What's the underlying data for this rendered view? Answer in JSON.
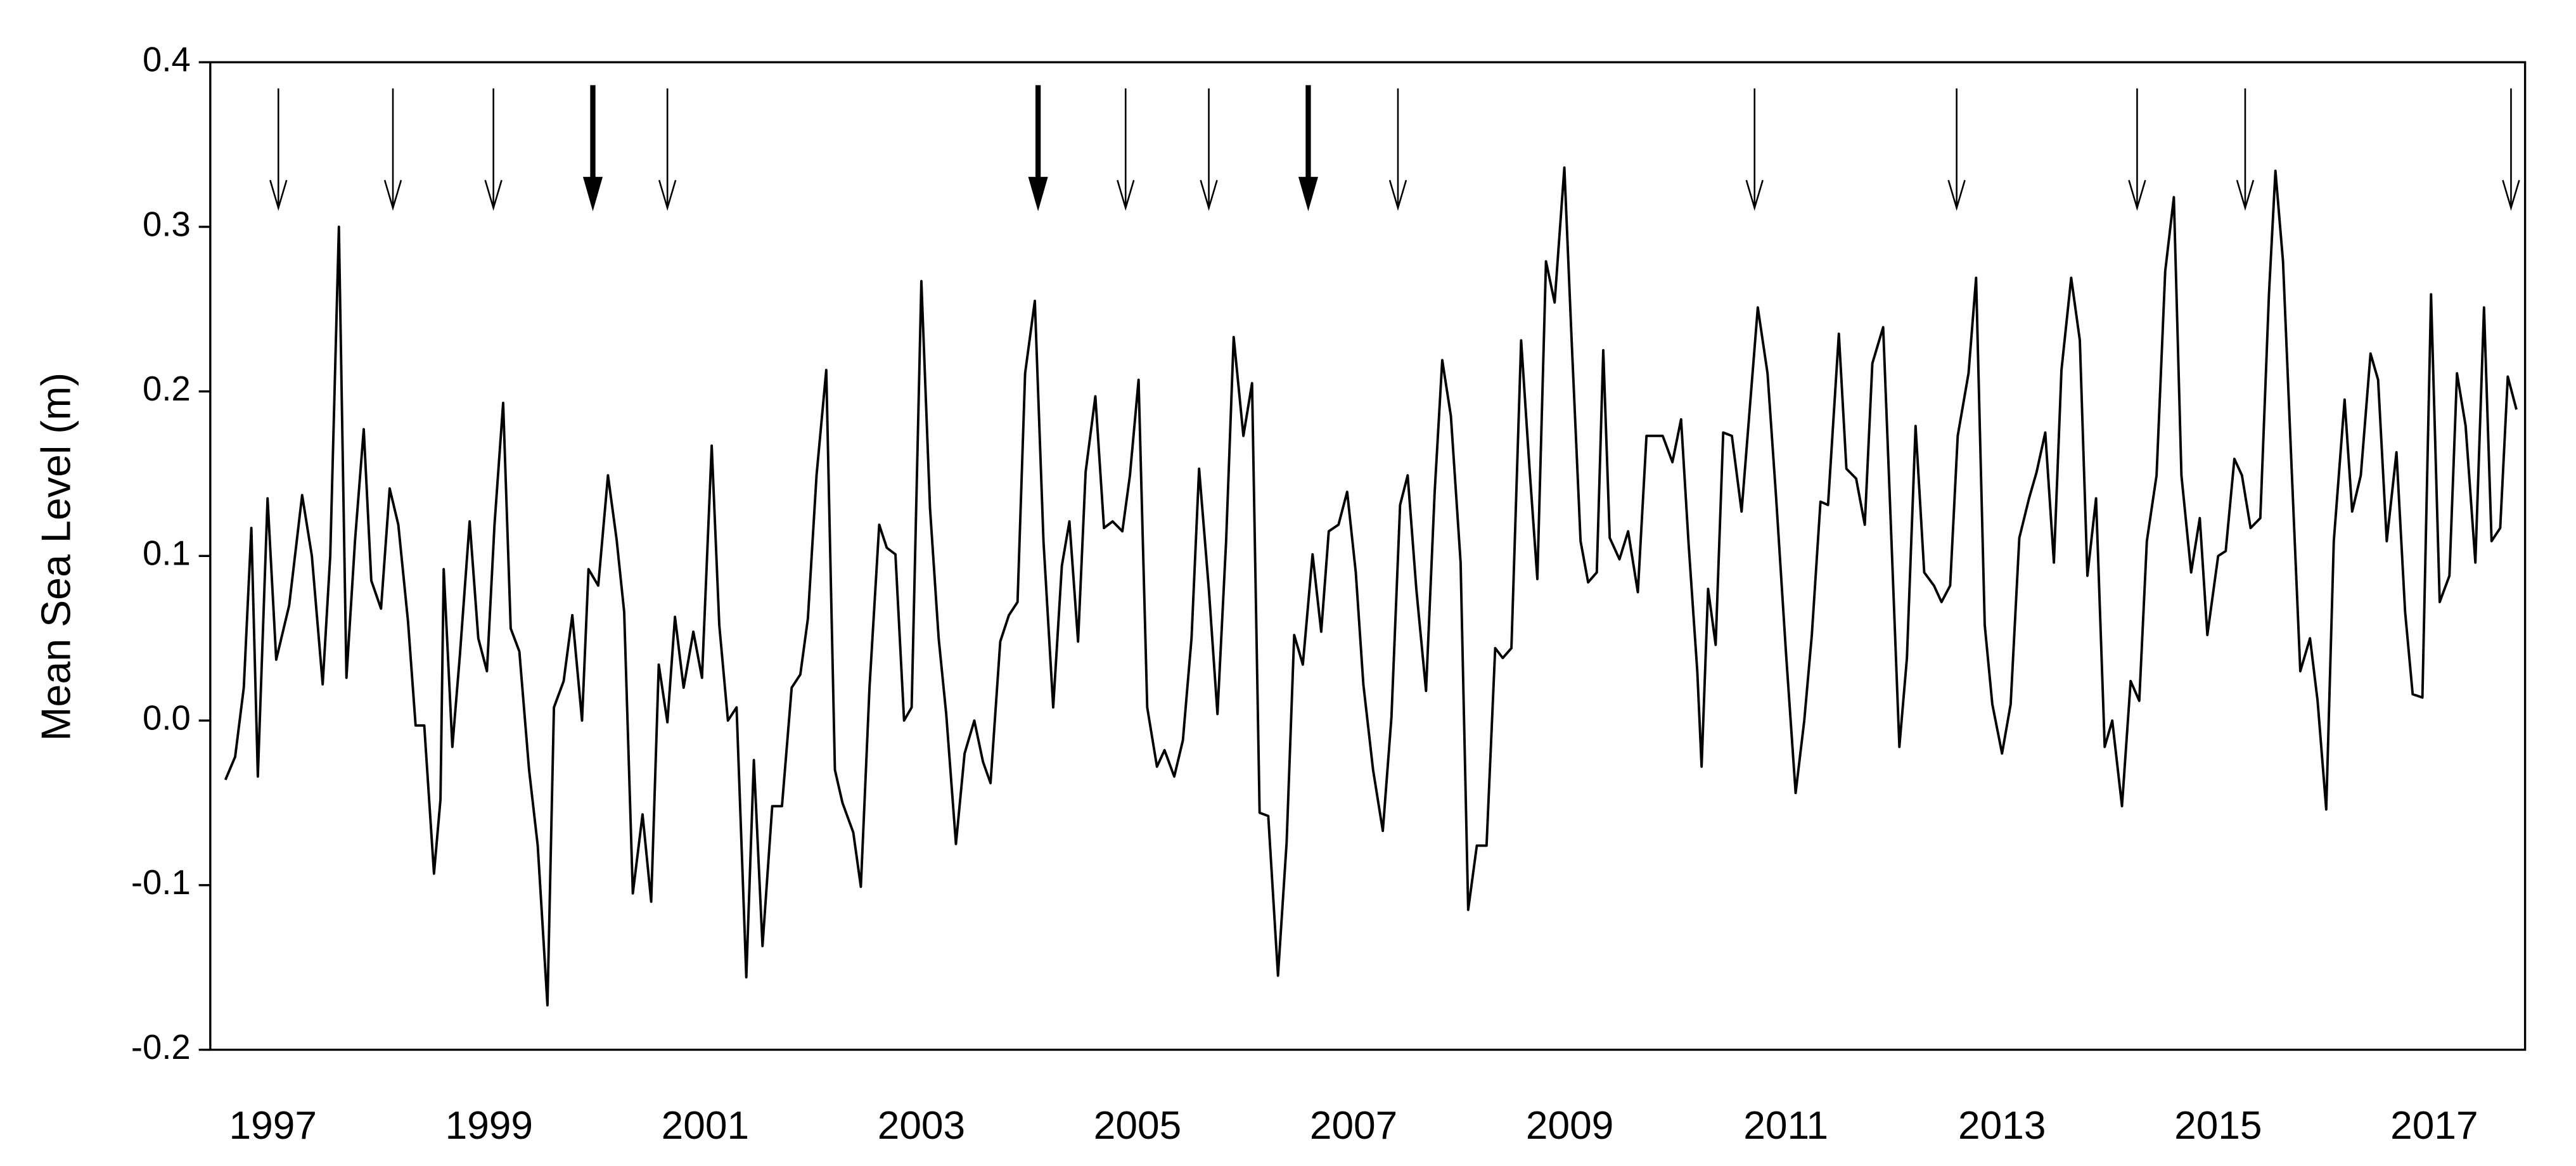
{
  "chart_data": {
    "type": "line",
    "y_label": "Mean Sea Level (m)",
    "color": "#000000",
    "xlim": [
      1996.42,
      2017.84
    ],
    "xticks": [
      1997,
      1999,
      2001,
      2003,
      2005,
      2007,
      2009,
      2011,
      2013,
      2015,
      2017
    ],
    "ylim": [
      -0.2,
      0.4
    ],
    "yticks": [
      -0.2,
      -0.1,
      {
        "value": 0,
        "label": "0.0"
      },
      0.1,
      0.2,
      0.3,
      0.4
    ],
    "event_arrows": [
      1997.05,
      1998.11,
      1999.04,
      2000.65,
      2004.89,
      2005.66,
      2007.41,
      2010.71,
      2012.58,
      2014.25,
      2015.25,
      2017.71
    ],
    "major_event_arrows": [
      1999.96,
      2004.08,
      2006.58
    ],
    "x": [
      1996.56,
      1996.65,
      1996.73,
      1996.8,
      1996.86,
      1996.95,
      1997.03,
      1997.15,
      1997.27,
      1997.36,
      1997.46,
      1997.53,
      1997.61,
      1997.68,
      1997.76,
      1997.84,
      1997.91,
      1998.0,
      1998.08,
      1998.16,
      1998.25,
      1998.32,
      1998.4,
      1998.49,
      1998.55,
      1998.58,
      1998.66,
      1998.73,
      1998.82,
      1998.9,
      1998.98,
      1999.05,
      1999.13,
      1999.2,
      1999.28,
      1999.37,
      1999.45,
      1999.54,
      1999.6,
      1999.69,
      1999.77,
      1999.86,
      1999.92,
      2000.01,
      2000.1,
      2000.18,
      2000.25,
      2000.33,
      2000.42,
      2000.5,
      2000.57,
      2000.65,
      2000.72,
      2000.8,
      2000.89,
      2000.97,
      2001.06,
      2001.13,
      2001.21,
      2001.29,
      2001.38,
      2001.45,
      2001.53,
      2001.62,
      2001.71,
      2001.8,
      2001.88,
      2001.95,
      2002.03,
      2002.12,
      2002.2,
      2002.27,
      2002.37,
      2002.44,
      2002.52,
      2002.61,
      2002.68,
      2002.76,
      2002.84,
      2002.91,
      2003.0,
      2003.08,
      2003.16,
      2003.23,
      2003.32,
      2003.4,
      2003.49,
      2003.57,
      2003.64,
      2003.73,
      2003.81,
      2003.89,
      2003.96,
      2004.05,
      2004.13,
      2004.22,
      2004.3,
      2004.37,
      2004.45,
      2004.52,
      2004.61,
      2004.69,
      2004.77,
      2004.86,
      2004.93,
      2005.01,
      2005.09,
      2005.18,
      2005.25,
      2005.34,
      2005.42,
      2005.5,
      2005.57,
      2005.66,
      2005.74,
      2005.82,
      2005.89,
      2005.98,
      2006.06,
      2006.13,
      2006.21,
      2006.3,
      2006.38,
      2006.45,
      2006.53,
      2006.62,
      2006.7,
      2006.77,
      2006.86,
      2006.94,
      2007.02,
      2007.09,
      2007.18,
      2007.27,
      2007.35,
      2007.43,
      2007.5,
      2007.58,
      2007.67,
      2007.75,
      2007.82,
      2007.9,
      2007.99,
      2008.06,
      2008.14,
      2008.23,
      2008.31,
      2008.38,
      2008.46,
      2008.55,
      2008.63,
      2008.7,
      2008.78,
      2008.86,
      2008.95,
      2009.02,
      2009.1,
      2009.17,
      2009.25,
      2009.31,
      2009.37,
      2009.46,
      2009.54,
      2009.63,
      2009.71,
      2009.78,
      2009.86,
      2009.95,
      2010.03,
      2010.1,
      2010.18,
      2010.22,
      2010.28,
      2010.35,
      2010.42,
      2010.5,
      2010.59,
      2010.66,
      2010.74,
      2010.83,
      2010.91,
      2011.0,
      2011.09,
      2011.17,
      2011.24,
      2011.32,
      2011.39,
      2011.49,
      2011.56,
      2011.65,
      2011.73,
      2011.8,
      2011.9,
      2011.97,
      2012.05,
      2012.12,
      2012.2,
      2012.28,
      2012.37,
      2012.44,
      2012.52,
      2012.59,
      2012.69,
      2012.76,
      2012.84,
      2012.91,
      2013.0,
      2013.08,
      2013.16,
      2013.25,
      2013.32,
      2013.4,
      2013.48,
      2013.55,
      2013.64,
      2013.72,
      2013.79,
      2013.87,
      2013.95,
      2014.02,
      2014.11,
      2014.19,
      2014.27,
      2014.34,
      2014.43,
      2014.51,
      2014.59,
      2014.66,
      2014.75,
      2014.83,
      2014.9,
      2015.0,
      2015.07,
      2015.15,
      2015.22,
      2015.3,
      2015.39,
      2015.47,
      2015.53,
      2015.6,
      2015.68,
      2015.76,
      2015.85,
      2015.92,
      2016.0,
      2016.07,
      2016.17,
      2016.24,
      2016.32,
      2016.41,
      2016.48,
      2016.56,
      2016.65,
      2016.73,
      2016.8,
      2016.89,
      2016.97,
      2017.05,
      2017.14,
      2017.21,
      2017.29,
      2017.38,
      2017.46,
      2017.53,
      2017.61,
      2017.68,
      2017.76
    ],
    "values": [
      -0.036,
      -0.022,
      0.02,
      0.117,
      -0.034,
      0.135,
      0.037,
      0.07,
      0.137,
      0.1,
      0.022,
      0.1,
      0.3,
      0.026,
      0.11,
      0.177,
      0.085,
      0.068,
      0.141,
      0.119,
      0.06,
      -0.003,
      -0.003,
      -0.093,
      -0.048,
      0.092,
      -0.016,
      0.04,
      0.121,
      0.05,
      0.03,
      0.119,
      0.193,
      0.056,
      0.042,
      -0.03,
      -0.076,
      -0.173,
      0.008,
      0.024,
      0.064,
      0.0,
      0.092,
      0.082,
      0.149,
      0.11,
      0.066,
      -0.105,
      -0.057,
      -0.11,
      0.034,
      -0.001,
      0.063,
      0.02,
      0.054,
      0.026,
      0.167,
      0.058,
      0.0,
      0.008,
      -0.156,
      -0.024,
      -0.137,
      -0.052,
      -0.052,
      0.02,
      0.028,
      0.062,
      0.149,
      0.213,
      -0.03,
      -0.05,
      -0.068,
      -0.101,
      0.02,
      0.119,
      0.105,
      0.101,
      0.0,
      0.008,
      0.267,
      0.129,
      0.05,
      0.004,
      -0.075,
      -0.02,
      0.0,
      -0.025,
      -0.038,
      0.048,
      0.064,
      0.072,
      0.211,
      0.255,
      0.109,
      0.008,
      0.094,
      0.121,
      0.048,
      0.151,
      0.197,
      0.117,
      0.121,
      0.115,
      0.149,
      0.207,
      0.008,
      -0.028,
      -0.018,
      -0.034,
      -0.012,
      0.05,
      0.153,
      0.08,
      0.004,
      0.109,
      0.233,
      0.173,
      0.205,
      -0.056,
      -0.058,
      -0.155,
      -0.074,
      0.052,
      0.034,
      0.101,
      0.054,
      0.115,
      0.119,
      0.139,
      0.09,
      0.022,
      -0.03,
      -0.067,
      0.002,
      0.131,
      0.149,
      0.08,
      0.018,
      0.139,
      0.219,
      0.185,
      0.096,
      -0.115,
      -0.076,
      -0.076,
      0.044,
      0.038,
      0.044,
      0.231,
      0.151,
      0.086,
      0.279,
      0.254,
      0.336,
      0.227,
      0.109,
      0.084,
      0.09,
      0.225,
      0.111,
      0.098,
      0.115,
      0.078,
      0.173,
      0.173,
      0.173,
      0.157,
      0.183,
      0.107,
      0.03,
      -0.028,
      0.08,
      0.046,
      0.175,
      0.173,
      0.127,
      0.185,
      0.251,
      0.211,
      0.135,
      0.042,
      -0.044,
      0.0,
      0.052,
      0.133,
      0.131,
      0.235,
      0.153,
      0.147,
      0.119,
      0.217,
      0.239,
      0.121,
      -0.016,
      0.038,
      0.179,
      0.09,
      0.082,
      0.072,
      0.082,
      0.173,
      0.211,
      0.269,
      0.058,
      0.01,
      -0.02,
      0.01,
      0.111,
      0.135,
      0.151,
      0.175,
      0.096,
      0.213,
      0.269,
      0.231,
      0.088,
      0.135,
      -0.016,
      0.0,
      -0.052,
      0.024,
      0.012,
      0.109,
      0.149,
      0.273,
      0.318,
      0.149,
      0.09,
      0.123,
      0.052,
      0.1,
      0.103,
      0.159,
      0.149,
      0.117,
      0.123,
      0.259,
      0.334,
      0.279,
      0.153,
      0.03,
      0.05,
      0.012,
      -0.054,
      0.109,
      0.195,
      0.127,
      0.149,
      0.223,
      0.207,
      0.109,
      0.163,
      0.066,
      0.016,
      0.014,
      0.259,
      0.072,
      0.088,
      0.211,
      0.179,
      0.096,
      0.251,
      0.109,
      0.117,
      0.209,
      0.189
    ]
  }
}
